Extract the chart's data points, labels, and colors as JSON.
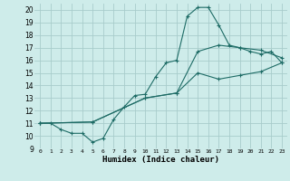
{
  "xlabel": "Humidex (Indice chaleur)",
  "bg_color": "#ceecea",
  "grid_color": "#a8cccb",
  "line_color": "#1d6b65",
  "xlim": [
    -0.5,
    23.5
  ],
  "ylim": [
    9,
    20.5
  ],
  "xticks": [
    0,
    1,
    2,
    3,
    4,
    5,
    6,
    7,
    8,
    9,
    10,
    11,
    12,
    13,
    14,
    15,
    16,
    17,
    18,
    19,
    20,
    21,
    22,
    23
  ],
  "yticks": [
    9,
    10,
    11,
    12,
    13,
    14,
    15,
    16,
    17,
    18,
    19,
    20
  ],
  "line1_x": [
    0,
    1,
    2,
    3,
    4,
    5,
    6,
    7,
    8,
    9,
    10,
    11,
    12,
    13,
    14,
    15,
    16,
    17,
    18,
    19,
    20,
    21,
    22,
    23
  ],
  "line1_y": [
    11,
    11,
    10.5,
    10.2,
    10.2,
    9.5,
    9.8,
    11.3,
    12.3,
    13.2,
    13.3,
    14.7,
    15.8,
    16.0,
    19.5,
    20.2,
    20.2,
    18.8,
    17.2,
    17.0,
    16.7,
    16.5,
    16.7,
    15.8
  ],
  "line2_x": [
    0,
    5,
    10,
    13,
    15,
    17,
    19,
    21,
    23
  ],
  "line2_y": [
    11,
    11.1,
    13.0,
    13.4,
    16.7,
    17.2,
    17.0,
    16.8,
    16.2
  ],
  "line3_x": [
    0,
    5,
    10,
    13,
    15,
    17,
    19,
    21,
    23
  ],
  "line3_y": [
    11,
    11.1,
    13.0,
    13.4,
    15.0,
    14.5,
    14.8,
    15.1,
    15.8
  ]
}
